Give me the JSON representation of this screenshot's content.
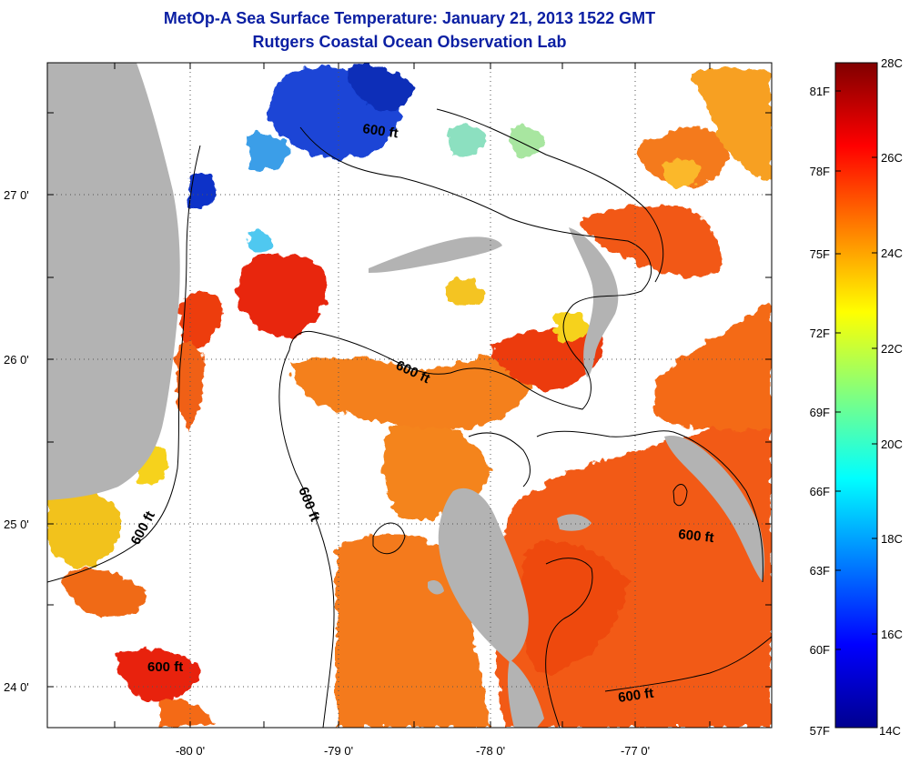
{
  "header": {
    "title": "MetOp-A Sea Surface Temperature:  January 21, 2013 1522 GMT",
    "subtitle": "Rutgers Coastal Ocean Observation Lab"
  },
  "map": {
    "x_ticks": [
      "-80 0'",
      "-79 0'",
      "-78 0'",
      "-77 0'"
    ],
    "y_ticks": [
      "27 0'",
      "26 0'",
      "25 0'",
      "24 0'"
    ],
    "contour_label": "600 ft",
    "colors": {
      "land": "#b3b3b3",
      "cloud": "#ffffff",
      "contour": "#000000"
    }
  },
  "colorbar": {
    "celsius": [
      "28C",
      "26C",
      "24C",
      "22C",
      "20C",
      "18C",
      "16C",
      "14C"
    ],
    "fahrenheit": [
      "81F",
      "78F",
      "75F",
      "72F",
      "69F",
      "66F",
      "63F",
      "60F",
      "57F"
    ]
  }
}
